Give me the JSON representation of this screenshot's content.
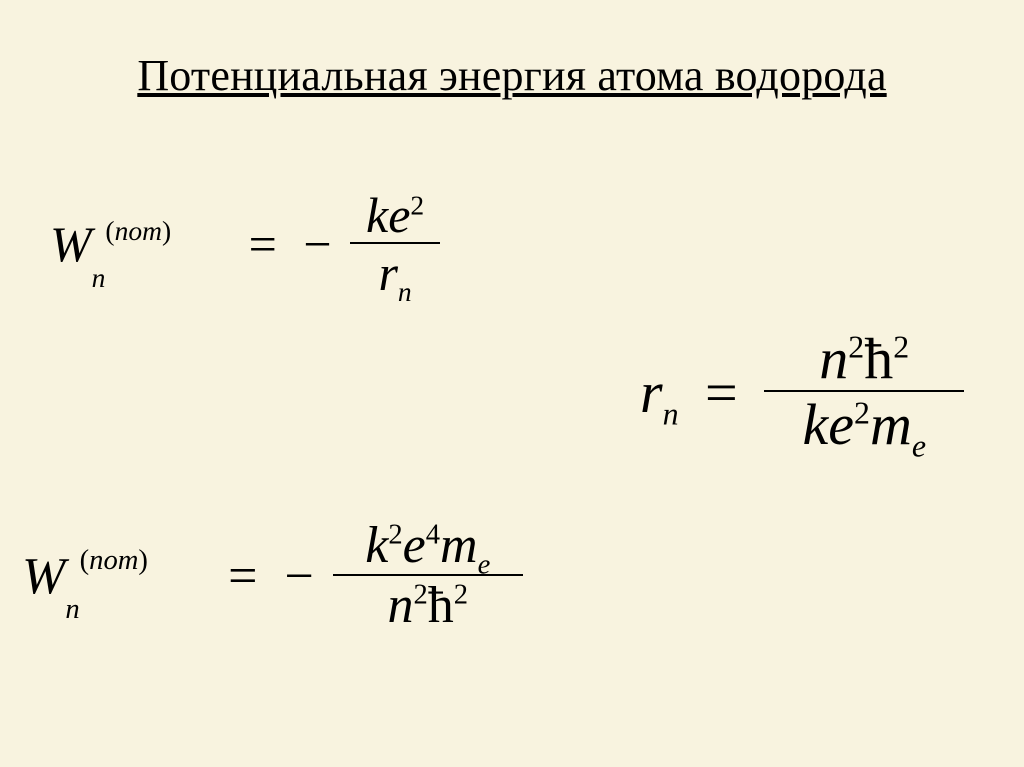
{
  "background_color": "#f8f3df",
  "text_color": "#000000",
  "font_family": "Times New Roman",
  "title": {
    "text": "Потенциальная энергия атома водорода",
    "fontsize": 44,
    "underline": true
  },
  "equations": {
    "eq1": {
      "lhs_base": "W",
      "lhs_sub": "n",
      "lhs_sup_label": "пот",
      "eq": "=",
      "sign": "−",
      "num_k": "k",
      "num_e": "e",
      "num_e_exp": "2",
      "den_r": "r",
      "den_r_sub": "n",
      "fontsize": 50
    },
    "eq2": {
      "lhs_r": "r",
      "lhs_r_sub": "n",
      "eq": "=",
      "num_n": "n",
      "num_n_exp": "2",
      "num_hbar": "ħ",
      "num_hbar_exp": "2",
      "den_k": "k",
      "den_e": "e",
      "den_e_exp": "2",
      "den_m": "m",
      "den_m_sub": "e",
      "fontsize": 58
    },
    "eq3": {
      "lhs_base": "W",
      "lhs_sub": "n",
      "lhs_sup_label": "пот",
      "eq": "=",
      "sign": "−",
      "num_k": "k",
      "num_k_exp": "2",
      "num_e": "e",
      "num_e_exp": "4",
      "num_m": "m",
      "num_m_sub": "e",
      "den_n": "n",
      "den_n_exp": "2",
      "den_hbar": "ħ",
      "den_hbar_exp": "2",
      "fontsize": 52
    }
  }
}
